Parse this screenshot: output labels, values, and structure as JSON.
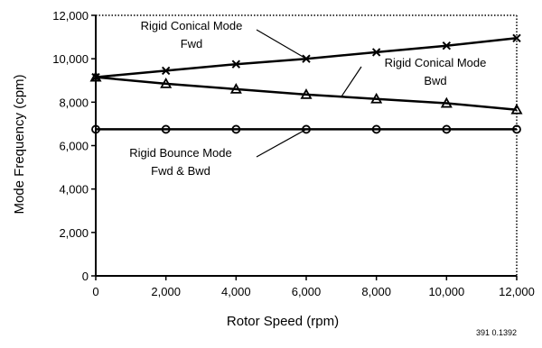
{
  "chart_data": {
    "type": "line",
    "title": "",
    "xlabel": "Rotor Speed (rpm)",
    "ylabel": "Mode Frequency (cpm)",
    "xlim": [
      0,
      12000
    ],
    "ylim": [
      0,
      12000
    ],
    "xticks": [
      0,
      2000,
      4000,
      6000,
      8000,
      10000,
      12000
    ],
    "yticks": [
      0,
      2000,
      4000,
      6000,
      8000,
      10000,
      12000
    ],
    "xtick_labels": [
      "0",
      "2,000",
      "4,000",
      "6,000",
      "8,000",
      "10,000",
      "12,000"
    ],
    "ytick_labels": [
      "0",
      "2,000",
      "4,000",
      "6,000",
      "8,000",
      "10,000",
      "12,000"
    ],
    "grid": false,
    "legend": "none",
    "line_color": "#000000",
    "x": [
      0,
      2000,
      4000,
      6000,
      8000,
      10000,
      12000
    ],
    "series": [
      {
        "marker": "x",
        "values": [
          9150,
          9450,
          9750,
          10000,
          10300,
          10600,
          10950
        ]
      },
      {
        "marker": "triangle",
        "values": [
          9150,
          8850,
          8600,
          8350,
          8150,
          7950,
          7650
        ]
      },
      {
        "marker": "circle",
        "values": [
          6750,
          6750,
          6750,
          6750,
          6750,
          6750,
          6750
        ]
      }
    ],
    "annotations": [
      {
        "lines": [
          "Rigid Conical Mode",
          "Fwd"
        ],
        "points_to": {
          "series": 0,
          "x": 6000
        }
      },
      {
        "lines": [
          "Rigid Conical Mode",
          "Bwd"
        ],
        "points_to": {
          "series": 1,
          "x": 7000
        }
      },
      {
        "lines": [
          "Rigid Bounce Mode",
          "Fwd & Bwd"
        ],
        "points_to": {
          "series": 2,
          "x": 6000
        }
      }
    ],
    "figure_code": "391 0.1392"
  }
}
